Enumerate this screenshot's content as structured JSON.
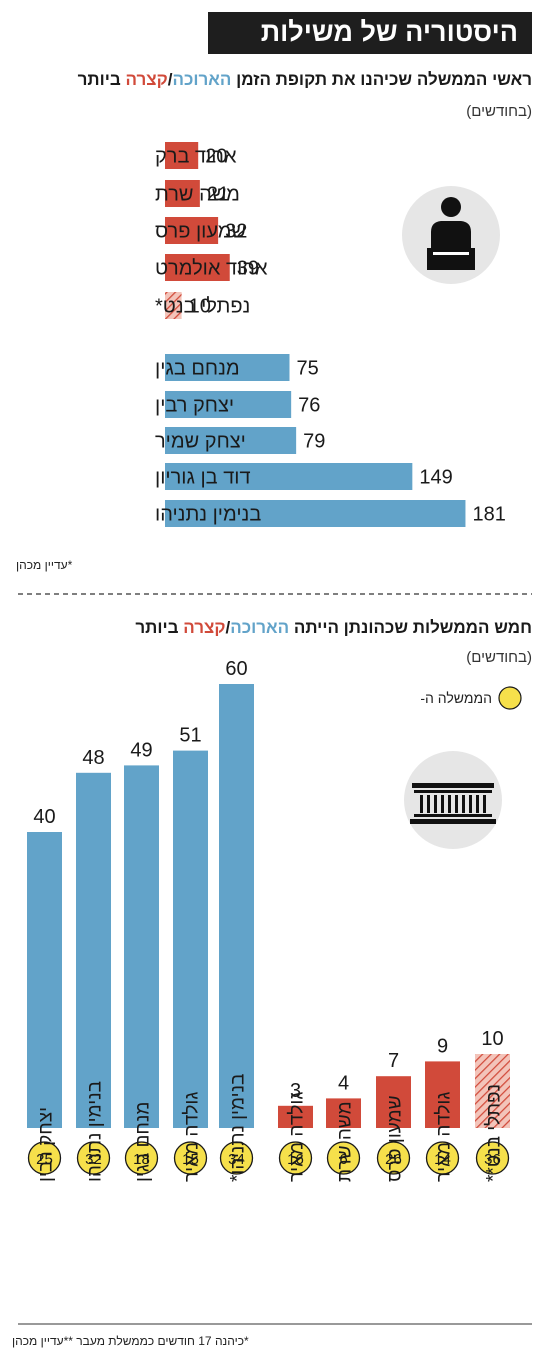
{
  "title": "היסטוריה של משילות",
  "section1": {
    "heading_before": "ראשי הממשלה שכיהנו את תקופת הזמן ",
    "heading_long": "הארוכה",
    "heading_sep": "/",
    "heading_short": "קצרה",
    "heading_after": " ביותר",
    "units": "(בחודשים)",
    "footnote": "*עדיין מכהן"
  },
  "section2": {
    "heading_before": "חמש הממשלות שכהונתן הייתה ",
    "heading_long": "הארוכה",
    "heading_sep": "/",
    "heading_short": "קצרה",
    "heading_after": " ביותר",
    "units": "(בחודשים)",
    "legend_label": "הממשלה ה-",
    "footnote": "*כיהנה 17 חודשים כממשלת מעבר   **עדיין מכהן"
  },
  "colors": {
    "long": "#62a3c9",
    "short": "#d14a3a",
    "hatch_light": "#f3c4ba",
    "badge": "#f6e04b",
    "icon_bg": "#e6e6e6"
  },
  "icons": [
    "prime-minister-podium-icon",
    "government-building-icon"
  ],
  "chart_data": [
    {
      "type": "bar",
      "orientation": "horizontal",
      "categories": [
        "אהוד ברק",
        "משה שרת",
        "שמעון פרס",
        "אהוד אולמרט",
        "נפתלי בנט*",
        "מנחם בגין",
        "יצחק רבין",
        "יצחק שמיר",
        "דוד בן גוריון",
        "בנימין נתניהו"
      ],
      "values": [
        20,
        21,
        32,
        39,
        10,
        75,
        76,
        79,
        149,
        181
      ],
      "groups": [
        "short",
        "short",
        "short",
        "short",
        "short-current",
        "long",
        "long",
        "long",
        "long",
        "long"
      ]
    },
    {
      "type": "bar",
      "orientation": "vertical",
      "categories": [
        "יצחק רבין",
        "בנימין נתניהו",
        "מנחם בגין",
        "גולדה מאיר",
        "בנימין נתניהו*",
        "גולדה מאיר",
        "משה שרת",
        "שמעון פרס",
        "גולדה מאיר",
        "נפתלי בנט**"
      ],
      "values": [
        40,
        48,
        49,
        51,
        60,
        3,
        4,
        7,
        9,
        10
      ],
      "government_numbers": [
        "25",
        "32",
        "18",
        "15",
        "34",
        "16",
        "6",
        "26",
        "14",
        "36"
      ],
      "groups": [
        "long",
        "long",
        "long",
        "long",
        "long",
        "short",
        "short",
        "short",
        "short",
        "short-current"
      ]
    }
  ]
}
